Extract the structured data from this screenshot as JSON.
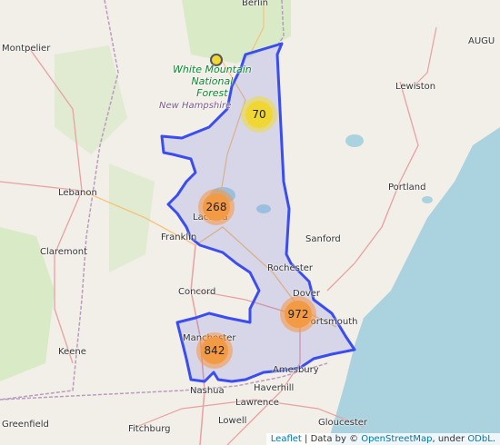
{
  "map": {
    "region_label": "New Hampshire",
    "forest_label": [
      "White Mountain",
      "National",
      "Forest"
    ],
    "cities": {
      "berlin": "Berlin",
      "montpelier": "Montpelier",
      "lewiston": "Lewiston",
      "augusta": "AUGU",
      "portland": "Portland",
      "lebanon": "Lebanon",
      "claremont": "Claremont",
      "franklin": "Franklin",
      "laconia": "Laconia",
      "sanford": "Sanford",
      "rochester": "Rochester",
      "concord": "Concord",
      "dover": "Dover",
      "portsmouth": "Portsmouth",
      "manchester": "Manchester",
      "keene": "Keene",
      "nashua": "Nashua",
      "amesbury": "Amesbury",
      "haverhill": "Haverhill",
      "lawrence": "Lawrence",
      "lowell": "Lowell",
      "greenfield": "Greenfield",
      "fitchburg": "Fitchburg",
      "gloucester": "Gloucester"
    },
    "clusters": [
      {
        "count": "70",
        "level": "small"
      },
      {
        "count": "268",
        "level": "medium"
      },
      {
        "count": "972",
        "level": "medium"
      },
      {
        "count": "842",
        "level": "medium"
      }
    ],
    "colors": {
      "boundary": "#3b4cf0",
      "fill": "rgba(90,100,230,0.18)",
      "cluster_small_outer": "rgba(240,220,60,0.55)",
      "cluster_small_inner": "#f1d733",
      "cluster_medium_outer": "rgba(250,150,60,0.55)",
      "cluster_medium_inner": "#f39a45",
      "water": "#aad3df",
      "forest": "#c8e6b0"
    }
  },
  "attribution": {
    "leaflet": "Leaflet",
    "data_prefix": "| Data by ©",
    "osm": "OpenStreetMap",
    "under": ", under",
    "odbl": "ODbL",
    "end": "."
  }
}
